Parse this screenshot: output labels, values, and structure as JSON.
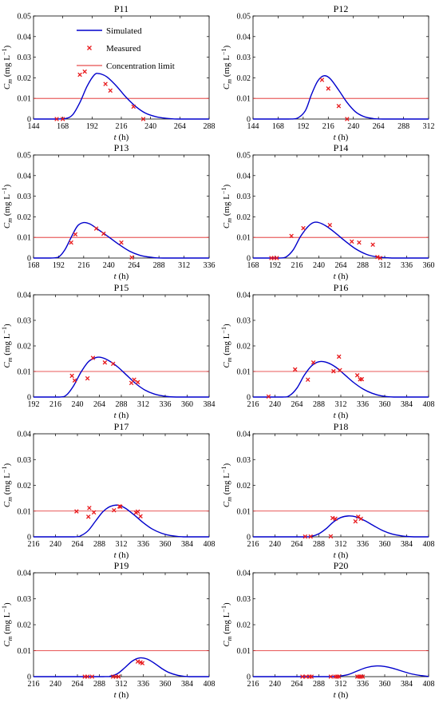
{
  "legend": {
    "simulated": "Simulated",
    "measured": "Measured",
    "limit": "Concentration limit"
  },
  "colors": {
    "simulated": "#0000cc",
    "measured": "#e8191c",
    "limit": "#e02020"
  },
  "chart_data": [
    {
      "type": "line",
      "title": "P11",
      "xlabel": "t (h)",
      "ylabel": "C_m (mg L^-1)",
      "xlim": [
        144,
        288
      ],
      "xticks": [
        144,
        168,
        192,
        216,
        240,
        264,
        288
      ],
      "ylim": [
        0,
        0.05
      ],
      "yticks": [
        0,
        0.01,
        0.02,
        0.03,
        0.04,
        0.05
      ],
      "ytick_labels": [
        "0",
        "0.01",
        "0.02",
        "0.03",
        "0.04",
        "0.05"
      ],
      "concentration_limit": 0.01,
      "simulated": [
        [
          162,
          0
        ],
        [
          170,
          0.0002
        ],
        [
          176,
          0.002
        ],
        [
          182,
          0.008
        ],
        [
          188,
          0.016
        ],
        [
          194,
          0.0215
        ],
        [
          198,
          0.022
        ],
        [
          204,
          0.0205
        ],
        [
          212,
          0.016
        ],
        [
          220,
          0.0105
        ],
        [
          228,
          0.006
        ],
        [
          236,
          0.0028
        ],
        [
          244,
          0.0012
        ],
        [
          252,
          0.0004
        ],
        [
          262,
          0
        ]
      ],
      "measured": [
        [
          163,
          0
        ],
        [
          168,
          0
        ],
        [
          182,
          0.0215
        ],
        [
          186,
          0.023
        ],
        [
          203,
          0.017
        ],
        [
          207,
          0.0138
        ],
        [
          226,
          0.006
        ],
        [
          234,
          0
        ]
      ]
    },
    {
      "type": "line",
      "title": "P12",
      "xlabel": "t (h)",
      "ylabel": "C_m (mg L^-1)",
      "xlim": [
        144,
        312
      ],
      "xticks": [
        144,
        168,
        192,
        216,
        240,
        264,
        288,
        312
      ],
      "ylim": [
        0,
        0.05
      ],
      "yticks": [
        0,
        0.01,
        0.02,
        0.03,
        0.04,
        0.05
      ],
      "ytick_labels": [
        "0",
        "0.01",
        "0.02",
        "0.03",
        "0.04",
        "0.05"
      ],
      "concentration_limit": 0.01,
      "simulated": [
        [
          178,
          0
        ],
        [
          186,
          0.0003
        ],
        [
          194,
          0.004
        ],
        [
          200,
          0.012
        ],
        [
          206,
          0.0185
        ],
        [
          212,
          0.021
        ],
        [
          218,
          0.0195
        ],
        [
          226,
          0.014
        ],
        [
          234,
          0.008
        ],
        [
          242,
          0.0035
        ],
        [
          250,
          0.0012
        ],
        [
          258,
          0.0003
        ],
        [
          268,
          0
        ]
      ],
      "measured": [
        [
          210,
          0.019
        ],
        [
          216,
          0.0148
        ],
        [
          226,
          0.0063
        ],
        [
          234,
          0
        ]
      ]
    },
    {
      "type": "line",
      "title": "P13",
      "xlabel": "t (h)",
      "ylabel": "C_m (mg L^-1)",
      "xlim": [
        168,
        336
      ],
      "xticks": [
        168,
        192,
        216,
        240,
        264,
        288,
        312,
        336
      ],
      "ylim": [
        0,
        0.05
      ],
      "yticks": [
        0,
        0.01,
        0.02,
        0.03,
        0.04,
        0.05
      ],
      "ytick_labels": [
        "0",
        "0.01",
        "0.02",
        "0.03",
        "0.04",
        "0.05"
      ],
      "concentration_limit": 0.01,
      "simulated": [
        [
          184,
          0
        ],
        [
          192,
          0.0005
        ],
        [
          198,
          0.004
        ],
        [
          204,
          0.01
        ],
        [
          210,
          0.0155
        ],
        [
          216,
          0.0172
        ],
        [
          222,
          0.0165
        ],
        [
          230,
          0.0138
        ],
        [
          240,
          0.0102
        ],
        [
          250,
          0.0065
        ],
        [
          260,
          0.0033
        ],
        [
          270,
          0.0013
        ],
        [
          280,
          0.0004
        ],
        [
          292,
          0
        ]
      ],
      "measured": [
        [
          204,
          0.0075
        ],
        [
          208,
          0.0115
        ],
        [
          228,
          0.0143
        ],
        [
          235,
          0.0118
        ],
        [
          252,
          0.0075
        ],
        [
          262,
          0.0003
        ]
      ]
    },
    {
      "type": "line",
      "title": "P14",
      "xlabel": "t (h)",
      "ylabel": "C_m (mg L^-1)",
      "xlim": [
        168,
        360
      ],
      "xticks": [
        168,
        192,
        216,
        240,
        264,
        288,
        312,
        336,
        360
      ],
      "ylim": [
        0,
        0.05
      ],
      "yticks": [
        0,
        0.01,
        0.02,
        0.03,
        0.04,
        0.05
      ],
      "ytick_labels": [
        "0",
        "0.01",
        "0.02",
        "0.03",
        "0.04",
        "0.05"
      ],
      "concentration_limit": 0.01,
      "simulated": [
        [
          196,
          0
        ],
        [
          204,
          0.0005
        ],
        [
          212,
          0.004
        ],
        [
          220,
          0.0105
        ],
        [
          228,
          0.0152
        ],
        [
          234,
          0.0172
        ],
        [
          240,
          0.0172
        ],
        [
          248,
          0.0155
        ],
        [
          258,
          0.0122
        ],
        [
          268,
          0.0085
        ],
        [
          280,
          0.0045
        ],
        [
          292,
          0.0018
        ],
        [
          304,
          0.0005
        ],
        [
          316,
          0.0001
        ],
        [
          324,
          0
        ]
      ],
      "measured": [
        [
          188,
          0
        ],
        [
          191,
          0
        ],
        [
          194,
          0
        ],
        [
          210,
          0.0107
        ],
        [
          223,
          0.0145
        ],
        [
          252,
          0.016
        ],
        [
          276,
          0.008
        ],
        [
          284,
          0.0075
        ],
        [
          299,
          0.0065
        ],
        [
          304,
          0.0005
        ],
        [
          307,
          0
        ]
      ]
    },
    {
      "type": "line",
      "title": "P15",
      "xlabel": "t (h)",
      "ylabel": "C_m (mg L^-1)",
      "xlim": [
        192,
        384
      ],
      "xticks": [
        192,
        216,
        240,
        264,
        288,
        312,
        336,
        360,
        384
      ],
      "ylim": [
        0,
        0.04
      ],
      "yticks": [
        0,
        0.01,
        0.02,
        0.03,
        0.04
      ],
      "ytick_labels": [
        "0",
        "0.01",
        "0.02",
        "0.03",
        "0.04"
      ],
      "concentration_limit": 0.01,
      "simulated": [
        [
          220,
          0
        ],
        [
          228,
          0.0008
        ],
        [
          236,
          0.0045
        ],
        [
          244,
          0.0098
        ],
        [
          252,
          0.0138
        ],
        [
          260,
          0.0154
        ],
        [
          266,
          0.0155
        ],
        [
          274,
          0.0143
        ],
        [
          284,
          0.0118
        ],
        [
          294,
          0.0085
        ],
        [
          304,
          0.0052
        ],
        [
          314,
          0.0027
        ],
        [
          324,
          0.0012
        ],
        [
          336,
          0.0003
        ],
        [
          348,
          0
        ]
      ],
      "measured": [
        [
          234,
          0.0083
        ],
        [
          237,
          0.0065
        ],
        [
          251,
          0.0073
        ],
        [
          257,
          0.0153
        ],
        [
          270,
          0.0135
        ],
        [
          279,
          0.013
        ],
        [
          299,
          0.0055
        ],
        [
          302,
          0.0068
        ],
        [
          306,
          0.0058
        ]
      ]
    },
    {
      "type": "line",
      "title": "P16",
      "xlabel": "t (h)",
      "ylabel": "C_m (mg L^-1)",
      "xlim": [
        216,
        408
      ],
      "xticks": [
        216,
        240,
        264,
        288,
        312,
        336,
        360,
        384,
        408
      ],
      "ylim": [
        0,
        0.04
      ],
      "yticks": [
        0,
        0.01,
        0.02,
        0.03,
        0.04
      ],
      "ytick_labels": [
        "0",
        "0.01",
        "0.02",
        "0.03",
        "0.04"
      ],
      "concentration_limit": 0.01,
      "simulated": [
        [
          248,
          0
        ],
        [
          256,
          0.0006
        ],
        [
          264,
          0.0035
        ],
        [
          272,
          0.0085
        ],
        [
          280,
          0.0122
        ],
        [
          288,
          0.0138
        ],
        [
          296,
          0.0136
        ],
        [
          306,
          0.0118
        ],
        [
          316,
          0.0088
        ],
        [
          326,
          0.0057
        ],
        [
          336,
          0.0032
        ],
        [
          346,
          0.0015
        ],
        [
          356,
          0.0005
        ],
        [
          370,
          0
        ]
      ],
      "measured": [
        [
          233,
          0.0002
        ],
        [
          262,
          0.0108
        ],
        [
          276,
          0.0068
        ],
        [
          282,
          0.0135
        ],
        [
          304,
          0.0101
        ],
        [
          310,
          0.0158
        ],
        [
          311,
          0.0105
        ],
        [
          330,
          0.0085
        ],
        [
          333,
          0.0069
        ],
        [
          335,
          0.007
        ]
      ]
    },
    {
      "type": "line",
      "title": "P17",
      "xlabel": "t (h)",
      "ylabel": "C_m (mg L^-1)",
      "xlim": [
        216,
        408
      ],
      "xticks": [
        216,
        240,
        264,
        288,
        312,
        336,
        360,
        384,
        408
      ],
      "ylim": [
        0,
        0.04
      ],
      "yticks": [
        0,
        0.01,
        0.02,
        0.03,
        0.04
      ],
      "ytick_labels": [
        "0",
        "0.01",
        "0.02",
        "0.03",
        "0.04"
      ],
      "concentration_limit": 0.01,
      "simulated": [
        [
          260,
          0
        ],
        [
          268,
          0.0005
        ],
        [
          276,
          0.0025
        ],
        [
          284,
          0.0062
        ],
        [
          292,
          0.0098
        ],
        [
          300,
          0.0118
        ],
        [
          308,
          0.0123
        ],
        [
          316,
          0.0112
        ],
        [
          326,
          0.0085
        ],
        [
          336,
          0.0055
        ],
        [
          346,
          0.003
        ],
        [
          356,
          0.0014
        ],
        [
          366,
          0.0005
        ],
        [
          380,
          0
        ]
      ],
      "measured": [
        [
          263,
          0.0099
        ],
        [
          276,
          0.0078
        ],
        [
          277,
          0.0112
        ],
        [
          282,
          0.0095
        ],
        [
          304,
          0.0103
        ],
        [
          310,
          0.0118
        ],
        [
          311,
          0.0117
        ],
        [
          328,
          0.0094
        ],
        [
          330,
          0.0098
        ],
        [
          333,
          0.008
        ]
      ]
    },
    {
      "type": "line",
      "title": "P18",
      "xlabel": "t (h)",
      "ylabel": "C_m (mg L^-1)",
      "xlim": [
        216,
        408
      ],
      "xticks": [
        216,
        240,
        264,
        288,
        312,
        336,
        360,
        384,
        408
      ],
      "ylim": [
        0,
        0.04
      ],
      "yticks": [
        0,
        0.01,
        0.02,
        0.03,
        0.04
      ],
      "ytick_labels": [
        "0",
        "0.01",
        "0.02",
        "0.03",
        "0.04"
      ],
      "concentration_limit": 0.01,
      "simulated": [
        [
          272,
          0
        ],
        [
          280,
          0.0002
        ],
        [
          288,
          0.0012
        ],
        [
          296,
          0.0032
        ],
        [
          304,
          0.0058
        ],
        [
          312,
          0.0075
        ],
        [
          320,
          0.0081
        ],
        [
          328,
          0.0078
        ],
        [
          338,
          0.0063
        ],
        [
          348,
          0.0043
        ],
        [
          358,
          0.0024
        ],
        [
          368,
          0.0011
        ],
        [
          380,
          0.0003
        ],
        [
          392,
          0
        ]
      ],
      "measured": [
        [
          273,
          0.0001
        ],
        [
          279,
          0.0001
        ],
        [
          301,
          0.0002
        ],
        [
          303,
          0.0073
        ],
        [
          306,
          0.007
        ],
        [
          328,
          0.006
        ],
        [
          331,
          0.0078
        ],
        [
          334,
          0.007
        ]
      ]
    },
    {
      "type": "line",
      "title": "P19",
      "xlabel": "t (h)",
      "ylabel": "C_m (mg L^-1)",
      "xlim": [
        216,
        408
      ],
      "xticks": [
        216,
        240,
        264,
        288,
        312,
        336,
        360,
        384,
        408
      ],
      "ylim": [
        0,
        0.04
      ],
      "yticks": [
        0,
        0.01,
        0.02,
        0.03,
        0.04
      ],
      "ytick_labels": [
        "0",
        "0.01",
        "0.02",
        "0.03",
        "0.04"
      ],
      "concentration_limit": 0.01,
      "simulated": [
        [
          292,
          0
        ],
        [
          300,
          0.0002
        ],
        [
          308,
          0.0012
        ],
        [
          316,
          0.0035
        ],
        [
          324,
          0.006
        ],
        [
          332,
          0.0072
        ],
        [
          340,
          0.0068
        ],
        [
          348,
          0.0052
        ],
        [
          356,
          0.0032
        ],
        [
          364,
          0.0016
        ],
        [
          374,
          0.0005
        ],
        [
          386,
          0
        ]
      ],
      "measured": [
        [
          272,
          0
        ],
        [
          275,
          0
        ],
        [
          280,
          0
        ],
        [
          303,
          0
        ],
        [
          306,
          0
        ],
        [
          309,
          0
        ],
        [
          330,
          0.0058
        ],
        [
          333,
          0.0055
        ],
        [
          335,
          0.0052
        ]
      ]
    },
    {
      "type": "line",
      "title": "P20",
      "xlabel": "t (h)",
      "ylabel": "C_m (mg L^-1)",
      "xlim": [
        216,
        408
      ],
      "xticks": [
        216,
        240,
        264,
        288,
        312,
        336,
        360,
        384,
        408
      ],
      "ylim": [
        0,
        0.04
      ],
      "yticks": [
        0,
        0.01,
        0.02,
        0.03,
        0.04
      ],
      "ytick_labels": [
        "0",
        "0.01",
        "0.02",
        "0.03",
        "0.04"
      ],
      "concentration_limit": 0.01,
      "simulated": [
        [
          300,
          0
        ],
        [
          310,
          0.0002
        ],
        [
          320,
          0.0008
        ],
        [
          330,
          0.0022
        ],
        [
          340,
          0.0035
        ],
        [
          350,
          0.0041
        ],
        [
          360,
          0.0039
        ],
        [
          370,
          0.0031
        ],
        [
          380,
          0.002
        ],
        [
          390,
          0.001
        ],
        [
          400,
          0.0004
        ],
        [
          408,
          0.0001
        ]
      ],
      "measured": [
        [
          270,
          0
        ],
        [
          274,
          0
        ],
        [
          278,
          0
        ],
        [
          280,
          0
        ],
        [
          301,
          0
        ],
        [
          306,
          0
        ],
        [
          308,
          0
        ],
        [
          310,
          0
        ],
        [
          330,
          0
        ],
        [
          332,
          0
        ],
        [
          334,
          0
        ],
        [
          336,
          0
        ]
      ]
    }
  ]
}
